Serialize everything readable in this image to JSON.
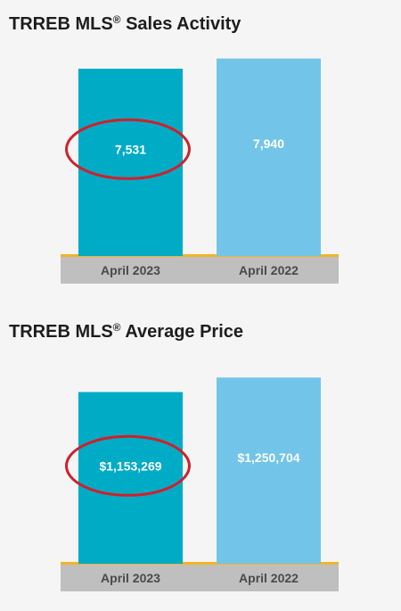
{
  "colors": {
    "bar_current": "#00abc5",
    "bar_previous": "#72c5e8",
    "baseline": "#f4b324",
    "category_band": "#bfbfbf",
    "highlight_circle": "#d0202b",
    "value_text": "#ffffff",
    "category_text": "#4a4a4a"
  },
  "chart_data": [
    {
      "type": "bar",
      "title": "TRREB MLS",
      "title_mark": "®",
      "title_suffix": "Sales Activity",
      "categories": [
        "April 2023",
        "April 2022"
      ],
      "values": [
        7531,
        7940
      ],
      "value_labels": [
        "7,531",
        "7,940"
      ],
      "highlighted_category": "April 2023",
      "ylim": [
        0,
        8500
      ],
      "grid": false,
      "legend": "none"
    },
    {
      "type": "bar",
      "title": "TRREB MLS",
      "title_mark": "®",
      "title_suffix": "Average Price",
      "categories": [
        "April 2023",
        "April 2022"
      ],
      "values": [
        1153269,
        1250704
      ],
      "value_labels": [
        "$1,153,269",
        "$1,250,704"
      ],
      "highlighted_category": "April 2023",
      "ylim": [
        0,
        1420000
      ],
      "grid": false,
      "legend": "none"
    }
  ]
}
